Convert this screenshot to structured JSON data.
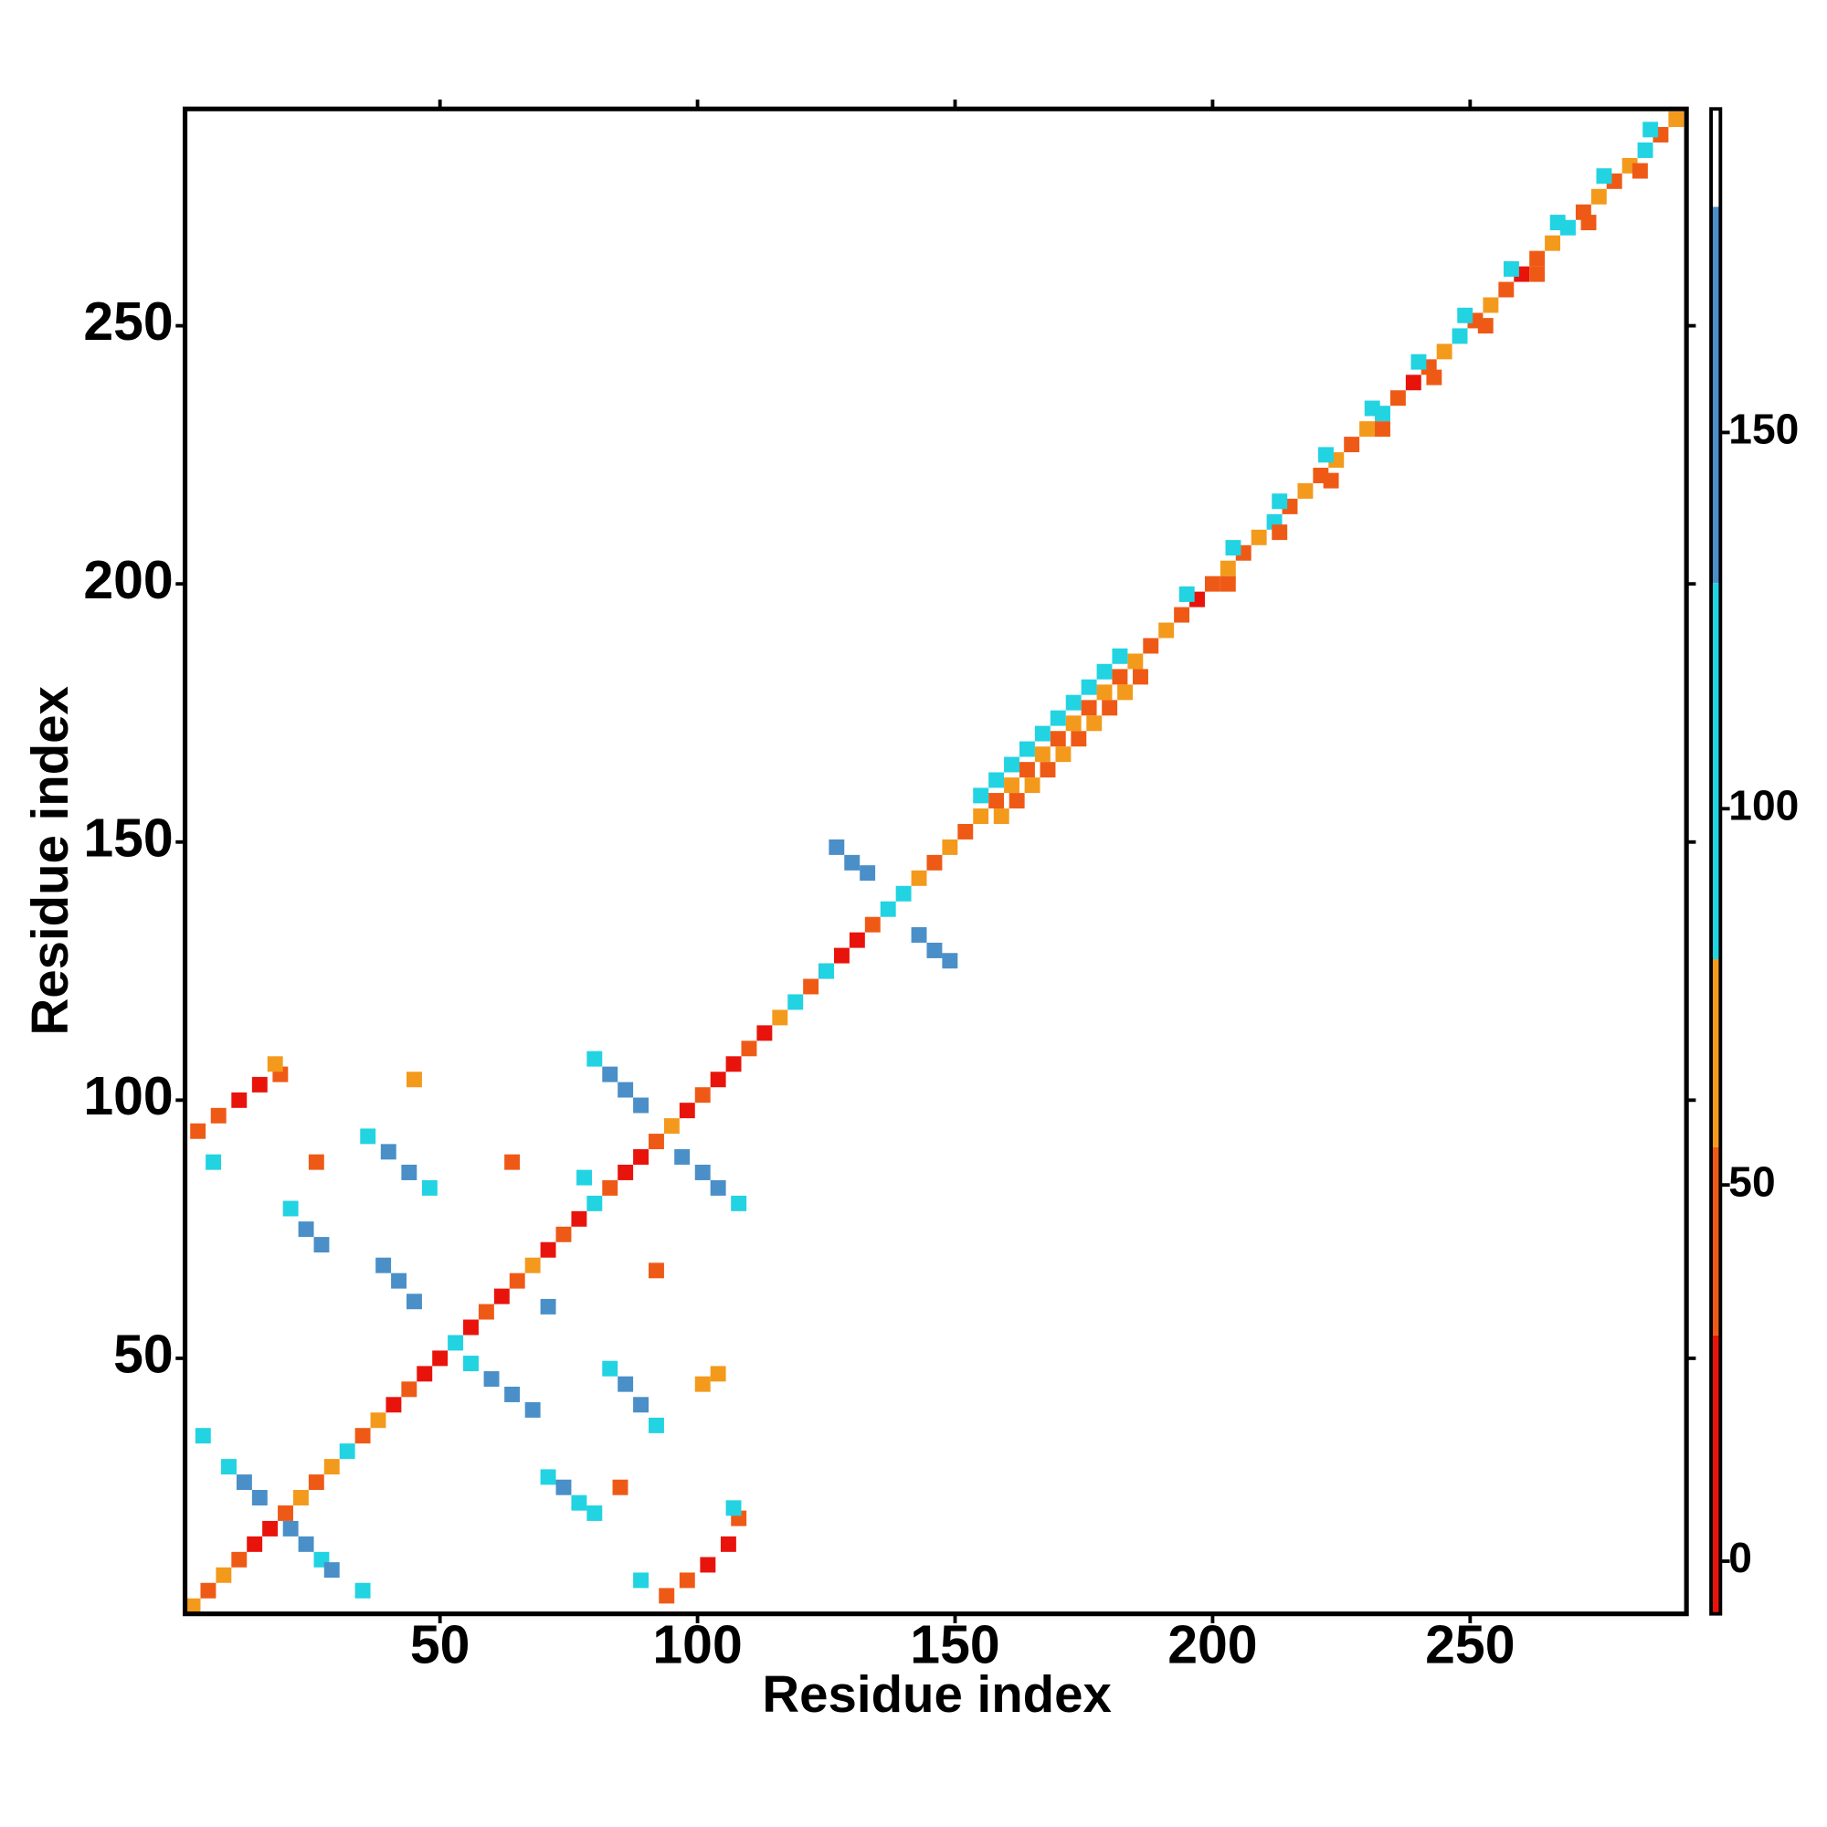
{
  "chart_data": {
    "type": "heatmap",
    "xlabel": "Residue index",
    "ylabel": "Residue index",
    "xlim": [
      0.5,
      292
    ],
    "ylim": [
      0.5,
      292
    ],
    "xticks": [
      50,
      100,
      150,
      200,
      250
    ],
    "yticks": [
      50,
      100,
      150,
      200,
      250
    ],
    "x": [
      2,
      5,
      8,
      11,
      14,
      17,
      20,
      23,
      26,
      29,
      32,
      35,
      38,
      41,
      44,
      47,
      50,
      53,
      56,
      59,
      62,
      65,
      68,
      71,
      74,
      77,
      80,
      83,
      86,
      89,
      92,
      95,
      98,
      101,
      104,
      107,
      110,
      113,
      116,
      119,
      122,
      125,
      128,
      131,
      134,
      137,
      140,
      143,
      146,
      149,
      152,
      155,
      158,
      161,
      164,
      167,
      170,
      173,
      176,
      179,
      182,
      185,
      188,
      191,
      194,
      197,
      200,
      203,
      206,
      209,
      212,
      215,
      218,
      221,
      224,
      227,
      230,
      233,
      236,
      239,
      242,
      245,
      248,
      251,
      254,
      257,
      260,
      263,
      266,
      269,
      272,
      275,
      278,
      281,
      284,
      287,
      290,
      155,
      158,
      161,
      164,
      167,
      170,
      173,
      176,
      179,
      182,
      159,
      162,
      165,
      168,
      171,
      174,
      177,
      180,
      183,
      186,
      195,
      204,
      213,
      222,
      231,
      240,
      249,
      258,
      267,
      276,
      285,
      203,
      213,
      223,
      233,
      243,
      253,
      263,
      273,
      283,
      9,
      12,
      15,
      21,
      24,
      27,
      29,
      71,
      74,
      77,
      80,
      83,
      86,
      89,
      92,
      39,
      42,
      45,
      56,
      60,
      64,
      68,
      21,
      24,
      27,
      36,
      40,
      44,
      48,
      80,
      83,
      86,
      89,
      97,
      101,
      104,
      108,
      127,
      130,
      133,
      143,
      146,
      149,
      3,
      7,
      11,
      15,
      19,
      18,
      94,
      98,
      102,
      106,
      108,
      107,
      45,
      104,
      101,
      26,
      64,
      85,
      4,
      35,
      89,
      6,
      78,
      125,
      92,
      71
    ],
    "y": [
      2,
      5,
      8,
      11,
      14,
      17,
      20,
      23,
      26,
      29,
      32,
      35,
      38,
      41,
      44,
      47,
      50,
      53,
      56,
      59,
      62,
      65,
      68,
      71,
      74,
      77,
      80,
      83,
      86,
      89,
      92,
      95,
      98,
      101,
      104,
      107,
      110,
      113,
      116,
      119,
      122,
      125,
      128,
      131,
      134,
      137,
      140,
      143,
      146,
      149,
      152,
      155,
      158,
      161,
      164,
      167,
      170,
      173,
      176,
      179,
      182,
      185,
      188,
      191,
      194,
      197,
      200,
      203,
      206,
      209,
      212,
      215,
      218,
      221,
      224,
      227,
      230,
      233,
      236,
      239,
      242,
      245,
      248,
      251,
      254,
      257,
      260,
      263,
      266,
      269,
      272,
      275,
      278,
      281,
      284,
      287,
      290,
      159,
      162,
      165,
      168,
      171,
      174,
      177,
      180,
      183,
      186,
      155,
      158,
      161,
      164,
      167,
      170,
      173,
      176,
      179,
      182,
      198,
      207,
      216,
      225,
      234,
      243,
      252,
      261,
      270,
      279,
      288,
      200,
      210,
      220,
      230,
      240,
      250,
      260,
      270,
      280,
      29,
      26,
      23,
      17,
      14,
      11,
      9,
      27,
      25,
      22,
      20,
      48,
      45,
      41,
      37,
      68,
      65,
      61,
      49,
      46,
      43,
      40,
      79,
      75,
      72,
      93,
      90,
      86,
      83,
      108,
      105,
      102,
      99,
      89,
      86,
      83,
      80,
      149,
      146,
      144,
      132,
      129,
      127,
      94,
      97,
      100,
      103,
      105,
      107,
      4,
      7,
      10,
      14,
      19,
      21,
      104,
      47,
      45,
      88,
      88,
      25,
      35,
      5,
      7,
      88,
      85,
      125,
      67,
      60
    ],
    "values": [
      60,
      40,
      60,
      40,
      15,
      15,
      40,
      60,
      40,
      60,
      110,
      40,
      60,
      15,
      40,
      15,
      15,
      110,
      15,
      40,
      15,
      40,
      60,
      15,
      40,
      15,
      110,
      40,
      15,
      15,
      40,
      60,
      15,
      40,
      15,
      15,
      40,
      15,
      60,
      110,
      40,
      15,
      15,
      15,
      40,
      110,
      110,
      60,
      40,
      60,
      40,
      60,
      40,
      60,
      40,
      60,
      40,
      60,
      40,
      60,
      40,
      60,
      40,
      60,
      40,
      15,
      40,
      60,
      40,
      60,
      110,
      40,
      60,
      40,
      60,
      40,
      60,
      110,
      40,
      15,
      40,
      60,
      110,
      40,
      60,
      40,
      15,
      40,
      60,
      110,
      40,
      60,
      40,
      60,
      110,
      40,
      60,
      110,
      110,
      110,
      110,
      110,
      110,
      110,
      110,
      110,
      110,
      60,
      40,
      60,
      40,
      60,
      40,
      60,
      40,
      60,
      40,
      110,
      110,
      110,
      110,
      110,
      110,
      110,
      110,
      110,
      110,
      110,
      40,
      40,
      40,
      40,
      40,
      40,
      40,
      40,
      40,
      110,
      140,
      140,
      140,
      140,
      110,
      140,
      110,
      140,
      110,
      110,
      110,
      140,
      140,
      110,
      140,
      140,
      140,
      110,
      140,
      140,
      140,
      110,
      140,
      140,
      110,
      140,
      140,
      110,
      110,
      140,
      140,
      140,
      140,
      140,
      140,
      110,
      140,
      140,
      140,
      140,
      140,
      140,
      40,
      40,
      15,
      15,
      40,
      60,
      40,
      40,
      15,
      15,
      40,
      110,
      60,
      60,
      60,
      40,
      40,
      40,
      110,
      110,
      110,
      110,
      110,
      110,
      40,
      140
    ],
    "colorbar": {
      "lim": [
        -7,
        193
      ],
      "ticks": [
        0,
        50,
        100,
        150
      ],
      "bounds": [
        -7,
        30,
        55,
        80,
        130,
        180,
        193
      ],
      "colors": [
        "#e8140c",
        "#ee5a16",
        "#f39a1c",
        "#22d3e2",
        "#4a8fc8",
        "#ffffff"
      ]
    }
  }
}
